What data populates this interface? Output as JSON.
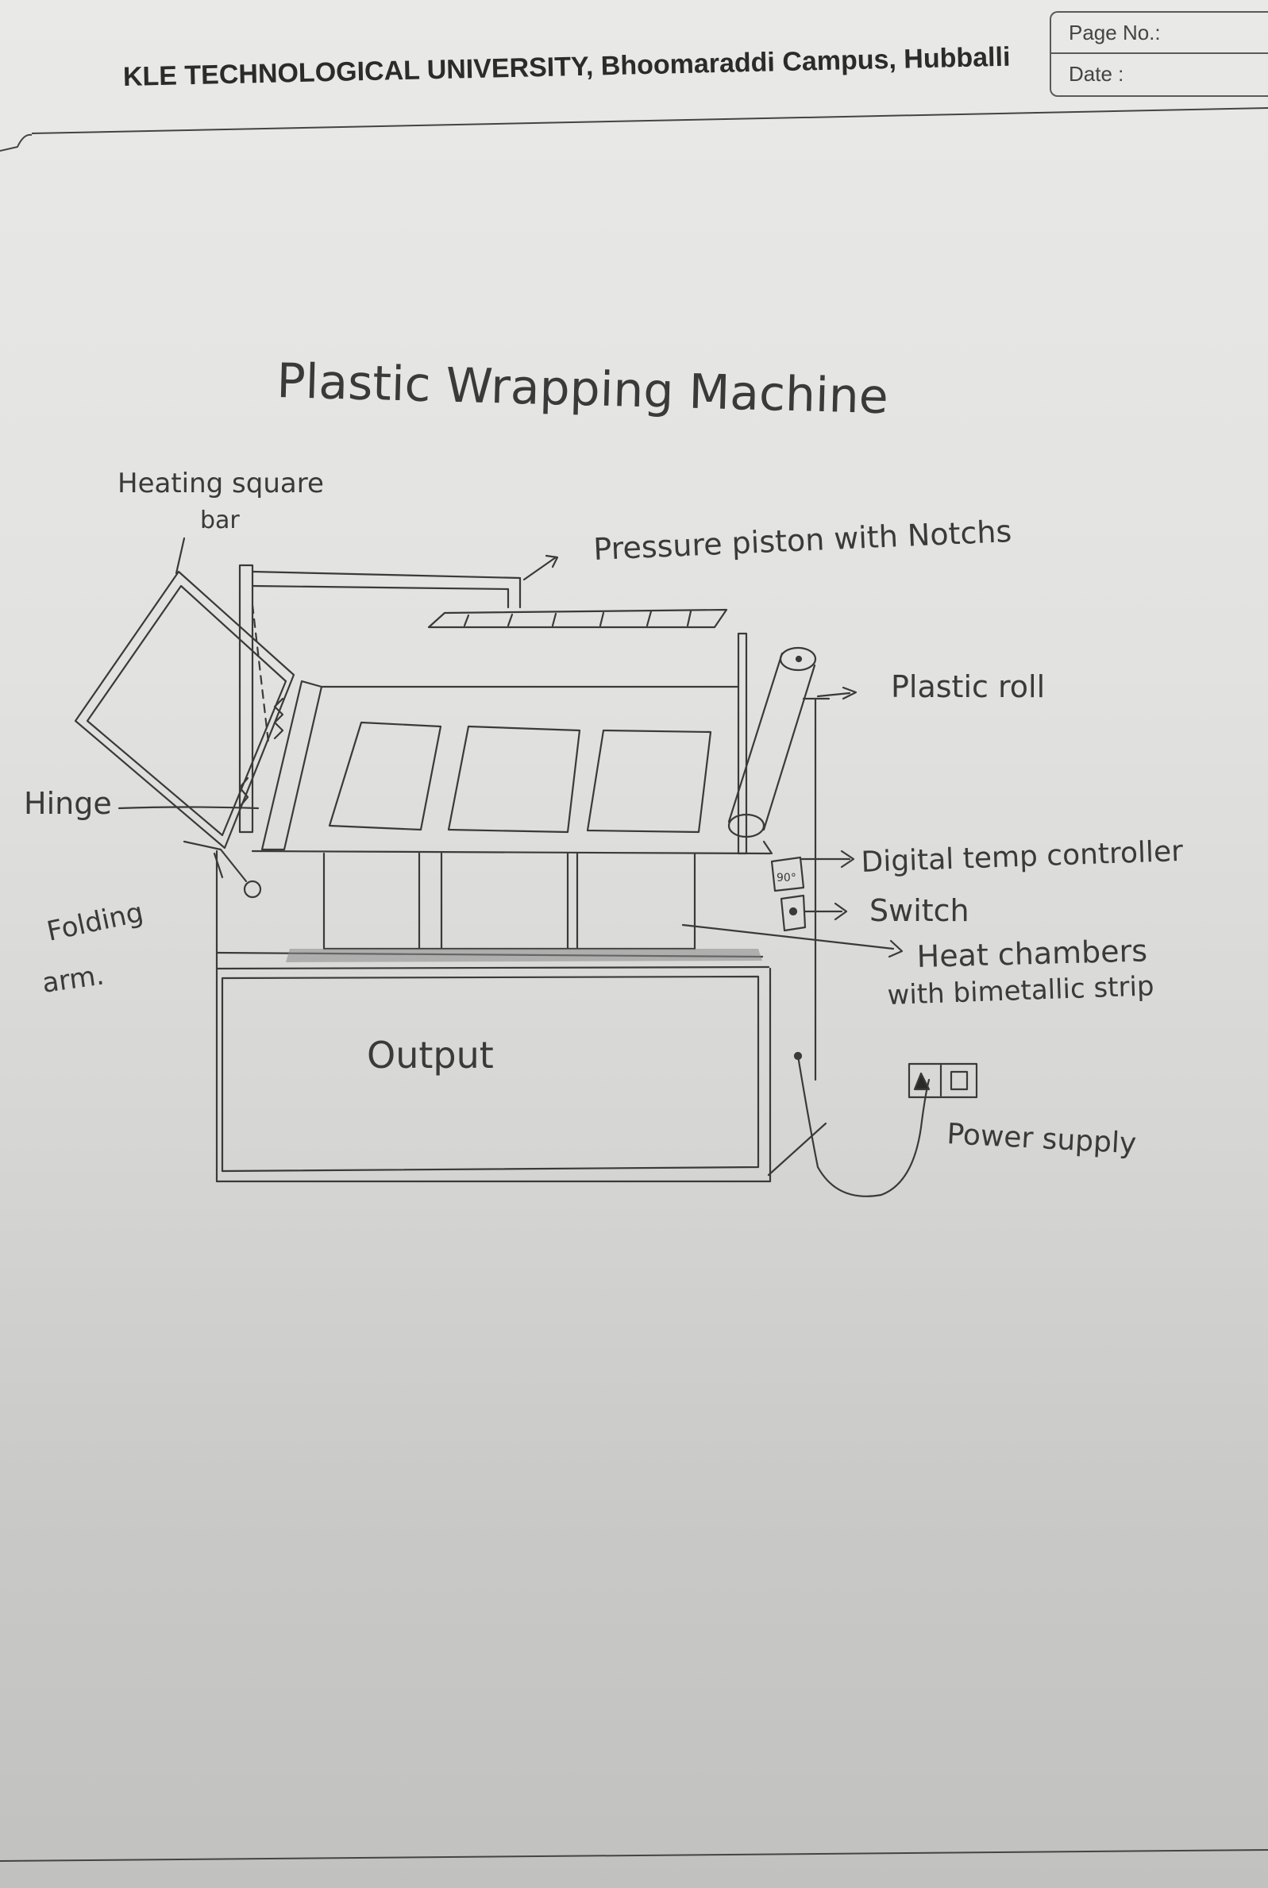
{
  "header": {
    "university": "KLE TECHNOLOGICAL UNIVERSITY, Bhoomaraddi Campus, Hubballi",
    "page_no_label": "Page No.:",
    "date_label": "Date :"
  },
  "diagram": {
    "title": "Plastic Wrapping Machine",
    "labels": {
      "heating_bar_line1": "Heating square",
      "heating_bar_line2": "bar",
      "pressure_piston": "Pressure piston with Notchs",
      "plastic_roll": "Plastic roll",
      "hinge": "Hinge",
      "folding_arm_line1": "Folding",
      "folding_arm_line2": "arm.",
      "digital_temp": "Digital temp controller",
      "temp_readout": "90°",
      "switch": "Switch",
      "heat_chambers_line1": "Heat chambers",
      "heat_chambers_line2": "with bimetallic strip",
      "output": "Output",
      "power_supply": "Power supply"
    }
  },
  "colors": {
    "pencil": "#3a3a3a",
    "paper": "#e6e6e4"
  }
}
